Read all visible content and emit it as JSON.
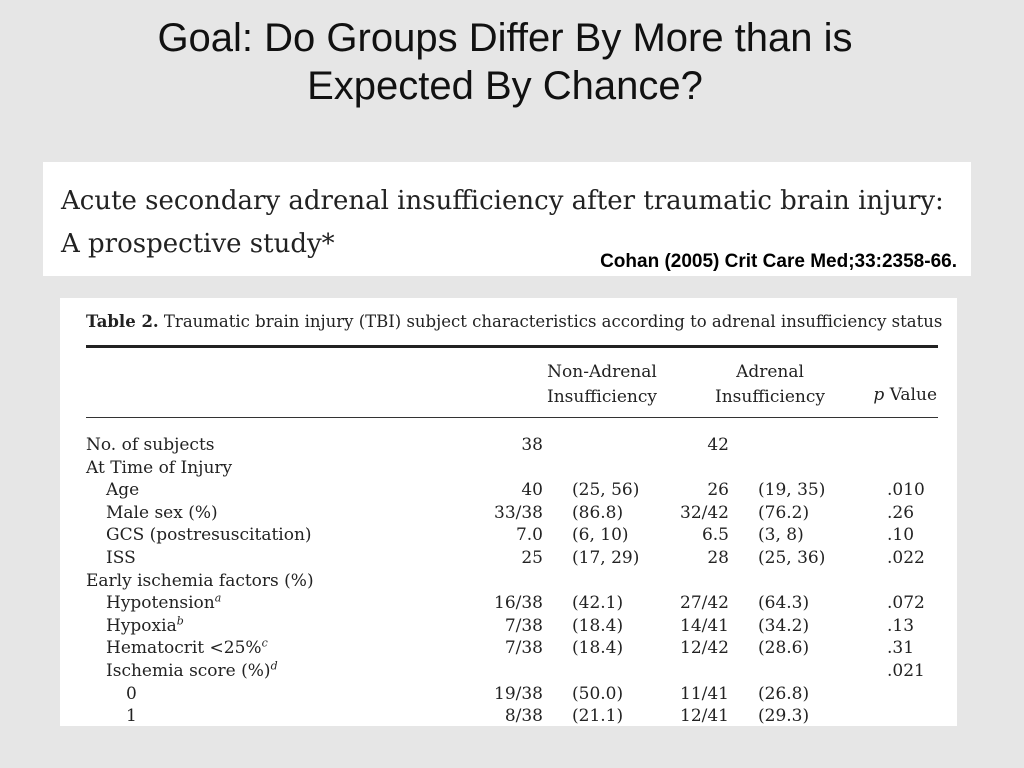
{
  "slide": {
    "title_line1": "Goal: Do Groups Differ By More than is",
    "title_line2": "Expected By Chance?"
  },
  "paper": {
    "title_line1": "Acute secondary adrenal insufficiency after traumatic brain injury:",
    "title_line2": "A prospective study*",
    "citation": "Cohan (2005) Crit Care Med;33:2358-66."
  },
  "table": {
    "caption_label": "Table 2.",
    "caption_text": "Traumatic brain injury (TBI) subject characteristics according to adrenal insufficiency status",
    "headers": {
      "group1_line1": "Non-Adrenal",
      "group1_line2": "Insufficiency",
      "group2_line1": "Adrenal",
      "group2_line2": "Insufficiency",
      "p_italic": "p",
      "p_rest": " Value"
    },
    "rows": [
      {
        "label": "No. of subjects",
        "n1": "38",
        "p1": "",
        "n2": "42",
        "p2": "",
        "pv": "",
        "sup": ""
      },
      {
        "label": "At Time of Injury",
        "n1": "",
        "p1": "",
        "n2": "",
        "p2": "",
        "pv": "",
        "sup": ""
      },
      {
        "label": "Age",
        "n1": "40",
        "p1": "(25, 56)",
        "n2": "26",
        "p2": "(19, 35)",
        "pv": ".010",
        "sup": ""
      },
      {
        "label": "Male sex (%)",
        "n1": "33/38",
        "p1": "(86.8)",
        "n2": "32/42",
        "p2": "(76.2)",
        "pv": ".26",
        "sup": ""
      },
      {
        "label": "GCS (postresuscitation)",
        "n1": "7.0",
        "p1": "(6, 10)",
        "n2": "6.5",
        "p2": "(3, 8)",
        "pv": ".10",
        "sup": ""
      },
      {
        "label": "ISS",
        "n1": "25",
        "p1": "(17, 29)",
        "n2": "28",
        "p2": "(25, 36)",
        "pv": ".022",
        "sup": ""
      },
      {
        "label": "Early ischemia factors (%)",
        "n1": "",
        "p1": "",
        "n2": "",
        "p2": "",
        "pv": "",
        "sup": ""
      },
      {
        "label": "Hypotension",
        "n1": "16/38",
        "p1": "(42.1)",
        "n2": "27/42",
        "p2": "(64.3)",
        "pv": ".072",
        "sup": "a"
      },
      {
        "label": "Hypoxia",
        "n1": "7/38",
        "p1": "(18.4)",
        "n2": "14/41",
        "p2": "(34.2)",
        "pv": ".13",
        "sup": "b"
      },
      {
        "label": "Hematocrit <25%",
        "n1": "7/38",
        "p1": "(18.4)",
        "n2": "12/42",
        "p2": "(28.6)",
        "pv": ".31",
        "sup": "c"
      },
      {
        "label": "Ischemia score (%)",
        "n1": "",
        "p1": "",
        "n2": "",
        "p2": "",
        "pv": ".021",
        "sup": "d"
      },
      {
        "label": "0",
        "n1": "19/38",
        "p1": "(50.0)",
        "n2": "11/41",
        "p2": "(26.8)",
        "pv": "",
        "sup": ""
      },
      {
        "label": "1",
        "n1": "8/38",
        "p1": "(21.1)",
        "n2": "12/41",
        "p2": "(29.3)",
        "pv": "",
        "sup": ""
      }
    ]
  }
}
